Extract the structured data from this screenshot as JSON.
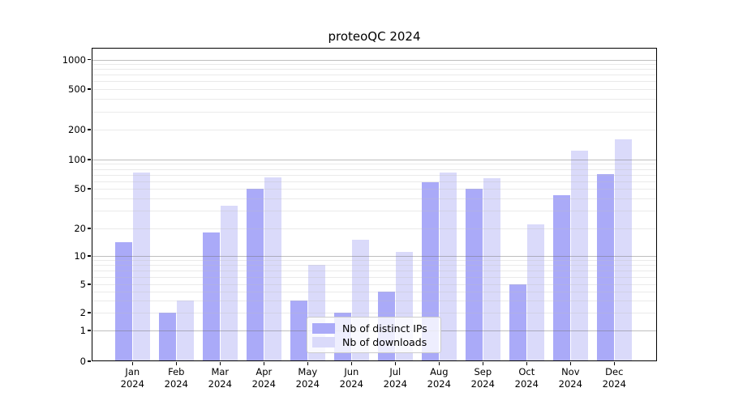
{
  "title": "proteoQC 2024",
  "chart_data": {
    "type": "bar",
    "title": "proteoQC 2024",
    "categories": [
      "Jan",
      "Feb",
      "Mar",
      "Apr",
      "May",
      "Jun",
      "Jul",
      "Aug",
      "Sep",
      "Oct",
      "Nov",
      "Dec"
    ],
    "x_tick_year": "2024",
    "series": [
      {
        "name": "Nb of distinct IPs",
        "color": "#aaaaf8",
        "values": [
          14,
          2,
          18,
          50,
          3,
          2,
          4,
          58,
          50,
          5,
          43,
          71
        ]
      },
      {
        "name": "Nb of downloads",
        "color": "#dadafa",
        "values": [
          73,
          3,
          34,
          65,
          8,
          15,
          11,
          73,
          64,
          22,
          123,
          160
        ]
      }
    ],
    "y_ticks": [
      0,
      1,
      2,
      5,
      10,
      20,
      50,
      100,
      200,
      500,
      1000
    ],
    "y_scale": "log-like (0 pinned at baseline)",
    "ylim": [
      0,
      1150
    ],
    "grid": true,
    "legend_position": "lower center",
    "xlabel": "",
    "ylabel": ""
  },
  "legend": {
    "items": [
      {
        "label": "Nb of distinct IPs"
      },
      {
        "label": "Nb of downloads"
      }
    ]
  },
  "colors": {
    "bar_distinct_ips": "#aaaaf8",
    "bar_downloads": "#dadafa",
    "grid_minor": "#ececec",
    "grid_major": "#bdbdbd",
    "axis": "#000000",
    "background": "#ffffff"
  }
}
